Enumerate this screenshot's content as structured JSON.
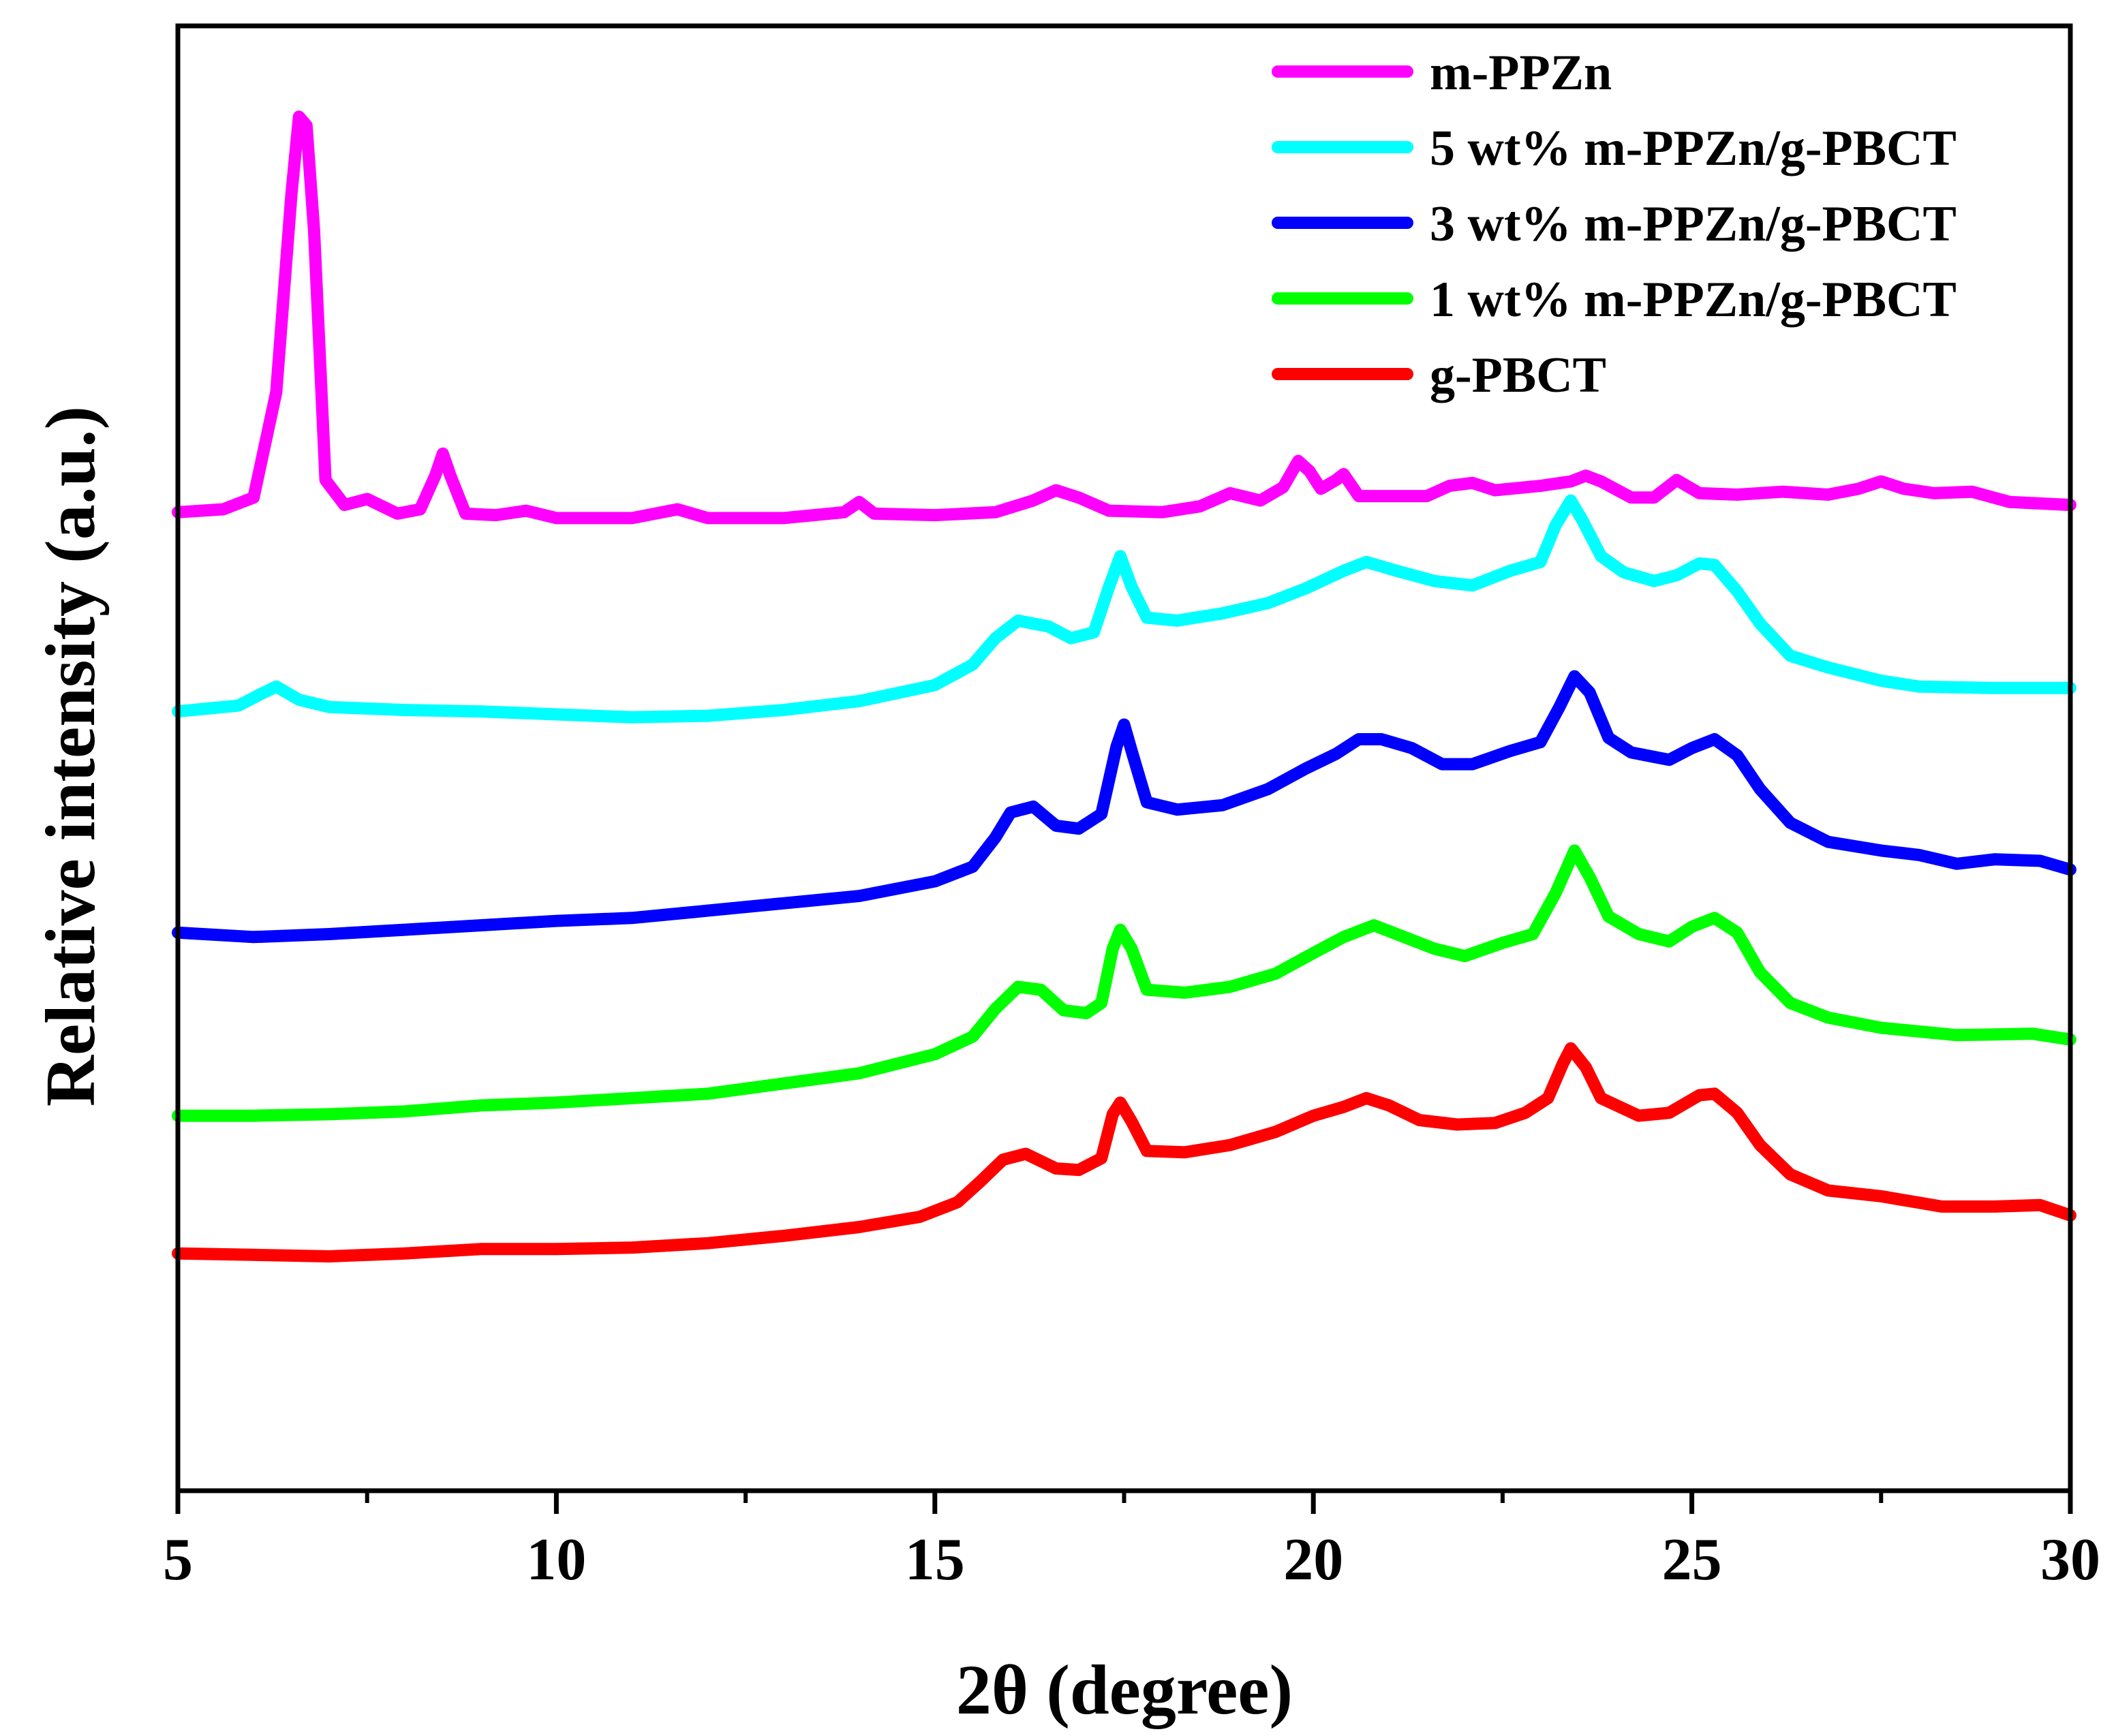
{
  "chart_data": {
    "type": "line",
    "title": "",
    "xlabel": "2θ (degree)",
    "ylabel": "Relative intensity (a.u.)",
    "xlim": [
      5,
      30
    ],
    "ylim": [
      0,
      100
    ],
    "xticks": [
      5,
      10,
      15,
      20,
      25,
      30
    ],
    "xtick_labels": [
      "5",
      "10",
      "15",
      "20",
      "25",
      "30"
    ],
    "y_tick_labels_shown": false,
    "grid": false,
    "legend_position": "top-right",
    "series": [
      {
        "name": "m-PPZn",
        "color": "#ff00ff",
        "points": [
          [
            5,
            66.8
          ],
          [
            5.6,
            67.0
          ],
          [
            6.0,
            67.8
          ],
          [
            6.3,
            75.0
          ],
          [
            6.5,
            88.5
          ],
          [
            6.6,
            93.8
          ],
          [
            6.7,
            93.2
          ],
          [
            6.8,
            86.0
          ],
          [
            6.95,
            69.0
          ],
          [
            7.2,
            67.3
          ],
          [
            7.5,
            67.7
          ],
          [
            7.9,
            66.7
          ],
          [
            8.2,
            67.0
          ],
          [
            8.4,
            69.3
          ],
          [
            8.5,
            70.8
          ],
          [
            8.6,
            69.3
          ],
          [
            8.8,
            66.7
          ],
          [
            9.2,
            66.6
          ],
          [
            9.6,
            66.9
          ],
          [
            10,
            66.4
          ],
          [
            11,
            66.4
          ],
          [
            11.6,
            67.0
          ],
          [
            12,
            66.4
          ],
          [
            13,
            66.4
          ],
          [
            13.8,
            66.8
          ],
          [
            14.0,
            67.5
          ],
          [
            14.2,
            66.7
          ],
          [
            15,
            66.6
          ],
          [
            15.8,
            66.8
          ],
          [
            16.3,
            67.6
          ],
          [
            16.6,
            68.3
          ],
          [
            16.9,
            67.8
          ],
          [
            17.3,
            66.9
          ],
          [
            18,
            66.8
          ],
          [
            18.5,
            67.2
          ],
          [
            18.9,
            68.1
          ],
          [
            19.3,
            67.6
          ],
          [
            19.6,
            68.5
          ],
          [
            19.8,
            70.3
          ],
          [
            19.95,
            69.6
          ],
          [
            20.1,
            68.4
          ],
          [
            20.3,
            69.0
          ],
          [
            20.4,
            69.4
          ],
          [
            20.6,
            67.9
          ],
          [
            21,
            67.9
          ],
          [
            21.5,
            67.9
          ],
          [
            21.8,
            68.6
          ],
          [
            22.1,
            68.8
          ],
          [
            22.4,
            68.3
          ],
          [
            23,
            68.6
          ],
          [
            23.4,
            68.9
          ],
          [
            23.6,
            69.3
          ],
          [
            23.8,
            68.9
          ],
          [
            24.2,
            67.8
          ],
          [
            24.5,
            67.8
          ],
          [
            24.8,
            69.0
          ],
          [
            25.1,
            68.1
          ],
          [
            25.6,
            68.0
          ],
          [
            26.2,
            68.2
          ],
          [
            26.8,
            68.0
          ],
          [
            27.2,
            68.4
          ],
          [
            27.5,
            68.9
          ],
          [
            27.8,
            68.4
          ],
          [
            28.2,
            68.1
          ],
          [
            28.7,
            68.2
          ],
          [
            29.2,
            67.5
          ],
          [
            30,
            67.3
          ]
        ]
      },
      {
        "name": "5 wt% m-PPZn/g-PBCT",
        "color": "#00ffff",
        "points": [
          [
            5,
            53.2
          ],
          [
            5.8,
            53.6
          ],
          [
            6.1,
            54.4
          ],
          [
            6.3,
            54.9
          ],
          [
            6.6,
            54.0
          ],
          [
            7,
            53.5
          ],
          [
            8,
            53.3
          ],
          [
            9,
            53.2
          ],
          [
            10,
            53.0
          ],
          [
            11,
            52.8
          ],
          [
            12,
            52.9
          ],
          [
            13,
            53.3
          ],
          [
            14,
            53.9
          ],
          [
            15,
            55.0
          ],
          [
            15.5,
            56.4
          ],
          [
            15.8,
            58.2
          ],
          [
            16.1,
            59.4
          ],
          [
            16.5,
            59.0
          ],
          [
            16.8,
            58.2
          ],
          [
            17.1,
            58.6
          ],
          [
            17.3,
            61.7
          ],
          [
            17.45,
            63.8
          ],
          [
            17.6,
            61.7
          ],
          [
            17.8,
            59.6
          ],
          [
            18.2,
            59.4
          ],
          [
            18.8,
            59.9
          ],
          [
            19.4,
            60.6
          ],
          [
            19.9,
            61.6
          ],
          [
            20.4,
            62.8
          ],
          [
            20.7,
            63.4
          ],
          [
            21.1,
            62.8
          ],
          [
            21.6,
            62.1
          ],
          [
            22.1,
            61.8
          ],
          [
            22.6,
            62.8
          ],
          [
            23.0,
            63.4
          ],
          [
            23.2,
            65.9
          ],
          [
            23.4,
            67.6
          ],
          [
            23.55,
            66.3
          ],
          [
            23.8,
            63.8
          ],
          [
            24.1,
            62.7
          ],
          [
            24.5,
            62.1
          ],
          [
            24.8,
            62.5
          ],
          [
            25.1,
            63.3
          ],
          [
            25.3,
            63.2
          ],
          [
            25.6,
            61.4
          ],
          [
            25.9,
            59.2
          ],
          [
            26.3,
            57.0
          ],
          [
            26.8,
            56.2
          ],
          [
            27.5,
            55.3
          ],
          [
            28,
            54.9
          ],
          [
            29,
            54.8
          ],
          [
            30,
            54.8
          ]
        ]
      },
      {
        "name": "3 wt% m-PPZn/g-PBCT",
        "color": "#0000ff",
        "points": [
          [
            5,
            38.1
          ],
          [
            6,
            37.8
          ],
          [
            7,
            38.0
          ],
          [
            8,
            38.3
          ],
          [
            9,
            38.6
          ],
          [
            10,
            38.9
          ],
          [
            11,
            39.1
          ],
          [
            12,
            39.6
          ],
          [
            13,
            40.1
          ],
          [
            14,
            40.6
          ],
          [
            15,
            41.6
          ],
          [
            15.5,
            42.6
          ],
          [
            15.8,
            44.6
          ],
          [
            16.0,
            46.3
          ],
          [
            16.3,
            46.7
          ],
          [
            16.6,
            45.4
          ],
          [
            16.9,
            45.2
          ],
          [
            17.2,
            46.2
          ],
          [
            17.4,
            50.8
          ],
          [
            17.5,
            52.3
          ],
          [
            17.6,
            50.5
          ],
          [
            17.8,
            47.0
          ],
          [
            18.2,
            46.5
          ],
          [
            18.8,
            46.8
          ],
          [
            19.4,
            47.9
          ],
          [
            19.9,
            49.3
          ],
          [
            20.3,
            50.3
          ],
          [
            20.6,
            51.3
          ],
          [
            20.9,
            51.3
          ],
          [
            21.3,
            50.7
          ],
          [
            21.7,
            49.6
          ],
          [
            22.1,
            49.6
          ],
          [
            22.6,
            50.5
          ],
          [
            23.0,
            51.1
          ],
          [
            23.25,
            53.5
          ],
          [
            23.45,
            55.6
          ],
          [
            23.65,
            54.5
          ],
          [
            23.9,
            51.4
          ],
          [
            24.2,
            50.4
          ],
          [
            24.7,
            49.9
          ],
          [
            25.0,
            50.7
          ],
          [
            25.3,
            51.3
          ],
          [
            25.6,
            50.2
          ],
          [
            25.9,
            47.9
          ],
          [
            26.3,
            45.6
          ],
          [
            26.8,
            44.3
          ],
          [
            27.5,
            43.7
          ],
          [
            28,
            43.4
          ],
          [
            28.5,
            42.8
          ],
          [
            29,
            43.1
          ],
          [
            29.6,
            43.0
          ],
          [
            30,
            42.4
          ]
        ]
      },
      {
        "name": "1 wt% m-PPZn/g-PBCT",
        "color": "#00ff00",
        "points": [
          [
            5,
            25.6
          ],
          [
            6,
            25.6
          ],
          [
            7,
            25.7
          ],
          [
            8,
            25.9
          ],
          [
            9,
            26.3
          ],
          [
            10,
            26.5
          ],
          [
            11,
            26.8
          ],
          [
            12,
            27.1
          ],
          [
            13,
            27.8
          ],
          [
            14,
            28.5
          ],
          [
            15,
            29.8
          ],
          [
            15.5,
            31.0
          ],
          [
            15.8,
            32.9
          ],
          [
            16.1,
            34.4
          ],
          [
            16.4,
            34.2
          ],
          [
            16.7,
            32.8
          ],
          [
            17.0,
            32.6
          ],
          [
            17.2,
            33.3
          ],
          [
            17.35,
            37.0
          ],
          [
            17.45,
            38.3
          ],
          [
            17.6,
            37.0
          ],
          [
            17.8,
            34.2
          ],
          [
            18.3,
            34.0
          ],
          [
            18.9,
            34.4
          ],
          [
            19.5,
            35.3
          ],
          [
            20.0,
            36.7
          ],
          [
            20.4,
            37.8
          ],
          [
            20.8,
            38.6
          ],
          [
            21.2,
            37.8
          ],
          [
            21.6,
            37.0
          ],
          [
            22.0,
            36.5
          ],
          [
            22.5,
            37.4
          ],
          [
            22.9,
            38.0
          ],
          [
            23.2,
            40.8
          ],
          [
            23.45,
            43.7
          ],
          [
            23.65,
            41.9
          ],
          [
            23.9,
            39.2
          ],
          [
            24.3,
            38.0
          ],
          [
            24.7,
            37.5
          ],
          [
            25.0,
            38.5
          ],
          [
            25.3,
            39.1
          ],
          [
            25.6,
            38.1
          ],
          [
            25.9,
            35.4
          ],
          [
            26.3,
            33.3
          ],
          [
            26.8,
            32.3
          ],
          [
            27.5,
            31.6
          ],
          [
            28.5,
            31.1
          ],
          [
            29.5,
            31.2
          ],
          [
            30,
            30.8
          ]
        ]
      },
      {
        "name": "g-PBCT",
        "color": "#ff0000",
        "points": [
          [
            5,
            16.2
          ],
          [
            6,
            16.1
          ],
          [
            7,
            16.0
          ],
          [
            8,
            16.2
          ],
          [
            9,
            16.5
          ],
          [
            10,
            16.5
          ],
          [
            11,
            16.6
          ],
          [
            12,
            16.9
          ],
          [
            13,
            17.4
          ],
          [
            14,
            18.0
          ],
          [
            14.8,
            18.7
          ],
          [
            15.3,
            19.7
          ],
          [
            15.6,
            21.1
          ],
          [
            15.9,
            22.6
          ],
          [
            16.2,
            23.0
          ],
          [
            16.6,
            22.0
          ],
          [
            16.9,
            21.9
          ],
          [
            17.2,
            22.7
          ],
          [
            17.35,
            25.7
          ],
          [
            17.45,
            26.5
          ],
          [
            17.6,
            25.2
          ],
          [
            17.8,
            23.2
          ],
          [
            18.3,
            23.1
          ],
          [
            18.9,
            23.6
          ],
          [
            19.5,
            24.5
          ],
          [
            20.0,
            25.6
          ],
          [
            20.4,
            26.2
          ],
          [
            20.7,
            26.8
          ],
          [
            21.0,
            26.3
          ],
          [
            21.4,
            25.3
          ],
          [
            21.9,
            25.0
          ],
          [
            22.4,
            25.1
          ],
          [
            22.8,
            25.8
          ],
          [
            23.1,
            26.8
          ],
          [
            23.3,
            29.2
          ],
          [
            23.4,
            30.2
          ],
          [
            23.6,
            28.9
          ],
          [
            23.8,
            26.8
          ],
          [
            24.3,
            25.6
          ],
          [
            24.7,
            25.8
          ],
          [
            25.1,
            27.0
          ],
          [
            25.3,
            27.1
          ],
          [
            25.6,
            25.8
          ],
          [
            25.9,
            23.6
          ],
          [
            26.3,
            21.6
          ],
          [
            26.8,
            20.5
          ],
          [
            27.5,
            20.1
          ],
          [
            28.3,
            19.4
          ],
          [
            29,
            19.4
          ],
          [
            29.6,
            19.5
          ],
          [
            30,
            18.8
          ]
        ]
      }
    ]
  }
}
